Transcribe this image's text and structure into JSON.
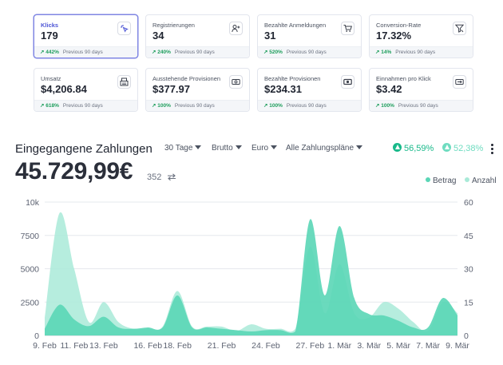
{
  "kpi_cards": [
    {
      "label": "Klicks",
      "value": "179",
      "change": "442%",
      "period": "Previous 90 days",
      "icon": "click-icon",
      "active": true
    },
    {
      "label": "Registrierungen",
      "value": "34",
      "change": "240%",
      "period": "Previous 90 days",
      "icon": "user-plus-icon",
      "active": false
    },
    {
      "label": "Bezahlte Anmeldungen",
      "value": "31",
      "change": "520%",
      "period": "Previous 90 days",
      "icon": "cart-icon",
      "active": false
    },
    {
      "label": "Conversion-Rate",
      "value": "17.32%",
      "change": "14%",
      "period": "Previous 90 days",
      "icon": "funnel-icon",
      "active": false
    },
    {
      "label": "Umsatz",
      "value": "$4,206.84",
      "change": "618%",
      "period": "Previous 90 days",
      "icon": "register-icon",
      "active": false
    },
    {
      "label": "Ausstehende Provisionen",
      "value": "$377.97",
      "change": "100%",
      "period": "Previous 90 days",
      "icon": "pending-money-icon",
      "active": false
    },
    {
      "label": "Bezahlte Provisionen",
      "value": "$234.31",
      "change": "100%",
      "period": "Previous 90 days",
      "icon": "banknote-icon",
      "active": false
    },
    {
      "label": "Einnahmen pro Klick",
      "value": "$3.42",
      "change": "100%",
      "period": "Previous 90 days",
      "icon": "money-transfer-icon",
      "active": false
    }
  ],
  "payments": {
    "title": "Eingegangene Zahlungen",
    "filters": [
      "30 Tage",
      "Brutto",
      "Euro",
      "Alle Zahlungspläne"
    ],
    "stat_amount": "56,59%",
    "stat_count": "52,38%",
    "total": "45.729,99€",
    "count": "352"
  },
  "colors": {
    "accent": "#4d55d6",
    "positive": "#1c9d5b",
    "betrag": "#5ad6b6",
    "anzahl": "#a9ead8",
    "stat_amount": "#19b98a",
    "stat_count": "#6fdcc0"
  },
  "chart_data": {
    "type": "area",
    "x_tick_labels": [
      "9. Feb",
      "11. Feb",
      "13. Feb",
      "16. Feb",
      "18. Feb",
      "21. Feb",
      "24. Feb",
      "27. Feb",
      "1. Mär",
      "3. Mär",
      "5. Mär",
      "7. Mär",
      "9. Mär"
    ],
    "y_left_ticks": [
      "0",
      "2500",
      "5000",
      "7500",
      "10k"
    ],
    "y_right_ticks": [
      "0",
      "15",
      "30",
      "45",
      "60"
    ],
    "ylim_left": [
      0,
      10000
    ],
    "ylim_right": [
      0,
      60
    ],
    "x": [
      0,
      1,
      2,
      3,
      4,
      5,
      6,
      7,
      8,
      9,
      10,
      11,
      12,
      13,
      14,
      15,
      16,
      17,
      18,
      19,
      20,
      21,
      22,
      23,
      24,
      25,
      26,
      27,
      28
    ],
    "grid": true,
    "legend_position": "top-right",
    "series": [
      {
        "name": "Betrag",
        "axis": "left",
        "values": [
          500,
          2300,
          1200,
          700,
          1400,
          600,
          500,
          600,
          600,
          3000,
          600,
          600,
          500,
          400,
          300,
          400,
          400,
          300,
          8700,
          3000,
          8200,
          2800,
          1600,
          1500,
          1100,
          600,
          600,
          2800,
          1500
        ]
      },
      {
        "name": "Anzahl",
        "axis": "right",
        "values": [
          8,
          55,
          30,
          6,
          15,
          6,
          3,
          3,
          4,
          20,
          4,
          4,
          4,
          2,
          5,
          3,
          3,
          3,
          40,
          10,
          32,
          10,
          8,
          15,
          12,
          6,
          2,
          15,
          10
        ]
      }
    ]
  }
}
